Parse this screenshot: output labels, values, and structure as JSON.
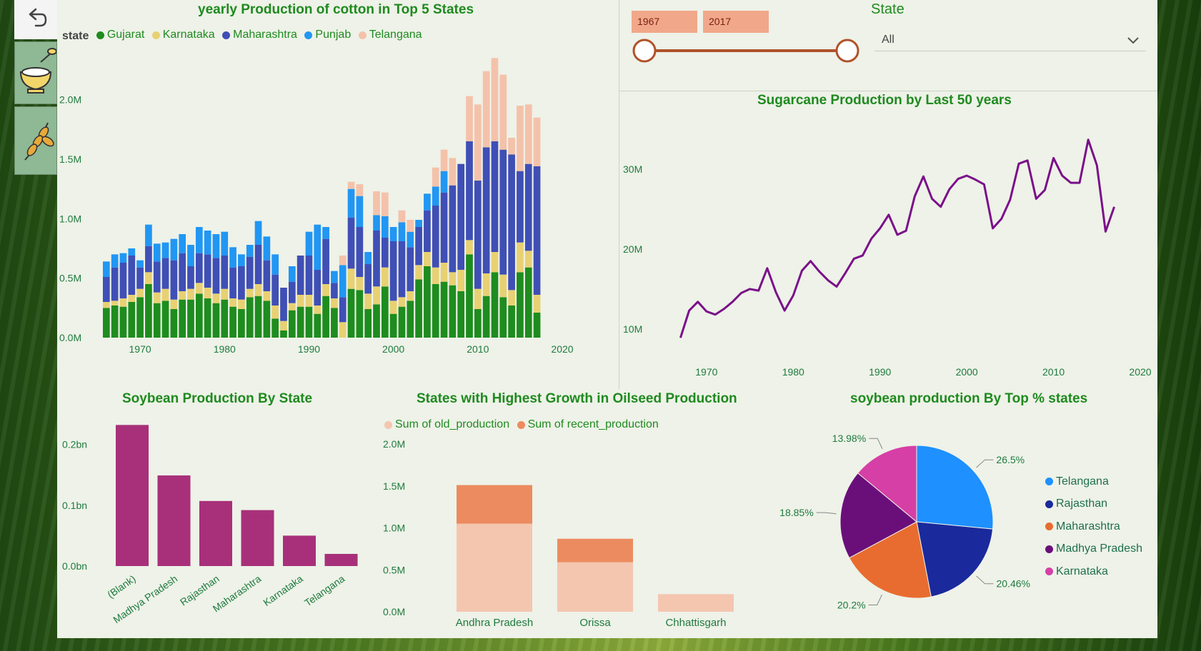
{
  "nav": {
    "back_icon": "undo-arrow-icon",
    "button1_icon": "rice-bowl-icon",
    "button2_icon": "wheat-crop-icon"
  },
  "filters": {
    "year_from": "1967",
    "year_to": "2017",
    "state_label": "State",
    "state_value": "All"
  },
  "colors": {
    "Gujarat": "#1e8c1e",
    "Karnataka": "#e8d173",
    "Maharashtra": "#3f4fb5",
    "Punjab": "#2196f3",
    "Telangana": "#f4c2aa",
    "line": "#7b0f8a",
    "soy_bar": "#a8307a",
    "old": "#f4c6b0",
    "recent": "#ec8b5f",
    "pie_Telangana": "#1e90ff",
    "pie_Rajasthan": "#1a2a9c",
    "pie_Maharashtra": "#e86c2f",
    "pie_Madhya Pradesh": "#6a0f7a",
    "pie_Karnataka": "#d63fa6"
  },
  "chart_data": [
    {
      "type": "bar",
      "title": "yearly Production of cotton in Top 5 States",
      "legend_title": "state",
      "stacked": true,
      "x": [
        1966,
        1967,
        1968,
        1969,
        1970,
        1971,
        1972,
        1973,
        1974,
        1975,
        1976,
        1977,
        1978,
        1979,
        1980,
        1981,
        1982,
        1983,
        1984,
        1985,
        1986,
        1987,
        1988,
        1989,
        1990,
        1991,
        1992,
        1993,
        1994,
        1995,
        1996,
        1997,
        1998,
        1999,
        2000,
        2001,
        2002,
        2003,
        2004,
        2005,
        2006,
        2007,
        2008,
        2009,
        2010,
        2011,
        2012,
        2013,
        2014,
        2015,
        2016,
        2017
      ],
      "xticks": [
        1970,
        1980,
        1990,
        2000,
        2010,
        2020
      ],
      "yticks": [
        "0.0M",
        "0.5M",
        "1.0M",
        "1.5M",
        "2.0M"
      ],
      "ylim": [
        0,
        2400000
      ],
      "series": [
        {
          "name": "Gujarat",
          "values": [
            250000,
            270000,
            260000,
            300000,
            340000,
            450000,
            290000,
            310000,
            240000,
            320000,
            320000,
            370000,
            330000,
            290000,
            320000,
            260000,
            240000,
            340000,
            350000,
            310000,
            160000,
            60000,
            230000,
            260000,
            260000,
            200000,
            350000,
            250000,
            0,
            410000,
            400000,
            240000,
            280000,
            430000,
            200000,
            260000,
            310000,
            490000,
            600000,
            450000,
            470000,
            440000,
            390000,
            700000,
            240000,
            350000,
            550000,
            340000,
            270000,
            550000,
            590000,
            210000
          ]
        },
        {
          "name": "Karnataka",
          "values": [
            50000,
            40000,
            70000,
            60000,
            70000,
            100000,
            90000,
            100000,
            80000,
            70000,
            90000,
            90000,
            90000,
            80000,
            90000,
            70000,
            80000,
            70000,
            100000,
            80000,
            110000,
            80000,
            60000,
            100000,
            100000,
            70000,
            100000,
            80000,
            130000,
            170000,
            110000,
            130000,
            150000,
            160000,
            110000,
            80000,
            80000,
            120000,
            120000,
            140000,
            160000,
            110000,
            180000,
            120000,
            170000,
            190000,
            170000,
            190000,
            130000,
            250000,
            140000,
            150000
          ]
        },
        {
          "name": "Maharashtra",
          "values": [
            210000,
            280000,
            300000,
            330000,
            180000,
            220000,
            260000,
            260000,
            330000,
            320000,
            190000,
            250000,
            280000,
            300000,
            280000,
            260000,
            280000,
            270000,
            330000,
            260000,
            260000,
            280000,
            180000,
            330000,
            330000,
            300000,
            380000,
            130000,
            210000,
            430000,
            420000,
            250000,
            470000,
            250000,
            500000,
            470000,
            370000,
            320000,
            350000,
            520000,
            590000,
            730000,
            890000,
            830000,
            910000,
            1060000,
            930000,
            1050000,
            1140000,
            600000,
            730000,
            1080000
          ]
        },
        {
          "name": "Punjab",
          "values": [
            130000,
            110000,
            80000,
            60000,
            60000,
            180000,
            150000,
            130000,
            180000,
            160000,
            180000,
            220000,
            200000,
            200000,
            200000,
            170000,
            100000,
            100000,
            200000,
            200000,
            170000,
            0,
            130000,
            0,
            200000,
            380000,
            100000,
            100000,
            270000,
            240000,
            260000,
            100000,
            130000,
            180000,
            120000,
            160000,
            130000,
            60000,
            140000,
            160000,
            180000,
            0,
            0,
            0,
            0,
            0,
            0,
            0,
            0,
            0,
            0,
            0
          ]
        },
        {
          "name": "Telangana",
          "values": [
            0,
            0,
            0,
            0,
            0,
            0,
            0,
            0,
            0,
            0,
            0,
            0,
            0,
            0,
            0,
            0,
            0,
            0,
            0,
            0,
            0,
            0,
            0,
            0,
            0,
            0,
            0,
            0,
            80000,
            60000,
            100000,
            0,
            200000,
            200000,
            0,
            100000,
            100000,
            0,
            0,
            160000,
            180000,
            230000,
            0,
            380000,
            640000,
            640000,
            700000,
            630000,
            140000,
            550000,
            500000,
            410000
          ]
        }
      ]
    },
    {
      "type": "line",
      "title": "Sugarcane Production by Last 50 years",
      "x": [
        1967,
        1968,
        1969,
        1970,
        1971,
        1972,
        1973,
        1974,
        1975,
        1976,
        1977,
        1978,
        1979,
        1980,
        1981,
        1982,
        1983,
        1984,
        1985,
        1986,
        1987,
        1988,
        1989,
        1990,
        1991,
        1992,
        1993,
        1994,
        1995,
        1996,
        1997,
        1998,
        1999,
        2000,
        2001,
        2002,
        2003,
        2004,
        2005,
        2006,
        2007,
        2008,
        2009,
        2010,
        2011,
        2012,
        2013,
        2014,
        2015,
        2016,
        2017
      ],
      "values": [
        8900000,
        12300000,
        13400000,
        12200000,
        11800000,
        12500000,
        13400000,
        14500000,
        15000000,
        14800000,
        17600000,
        14600000,
        12300000,
        14200000,
        17300000,
        18500000,
        17200000,
        16100000,
        15300000,
        17000000,
        18800000,
        19200000,
        21300000,
        22600000,
        24300000,
        21800000,
        22300000,
        26600000,
        29100000,
        26300000,
        25300000,
        27500000,
        28800000,
        29200000,
        28700000,
        28100000,
        22600000,
        23800000,
        26200000,
        30700000,
        31100000,
        26300000,
        27400000,
        31400000,
        29200000,
        28300000,
        28300000,
        33700000,
        30500000,
        22200000,
        25300000
      ],
      "xticks": [
        1970,
        1980,
        1990,
        2000,
        2010,
        2020
      ],
      "yticks": [
        "10M",
        "20M",
        "30M"
      ],
      "ylim": [
        6500000,
        36000000
      ]
    },
    {
      "type": "bar",
      "title": "Soybean Production By State",
      "categories": [
        "(Blank)",
        "Madhya Pradesh",
        "Rajasthan",
        "Maharashtra",
        "Karnataka",
        "Telangana"
      ],
      "values": [
        232000000,
        149000000,
        107000000,
        92000000,
        50000000,
        20000000
      ],
      "yticks": [
        "0.0bn",
        "0.1bn",
        "0.2bn"
      ],
      "ylim": [
        0,
        250000000
      ]
    },
    {
      "type": "bar",
      "title": "States with Highest Growth in Oilseed Production",
      "stacked": true,
      "categories": [
        "Andhra Pradesh",
        "Orissa",
        "Chhattisgarh"
      ],
      "series": [
        {
          "name": "Sum of old_production",
          "values": [
            1050000,
            590000,
            210000
          ]
        },
        {
          "name": "Sum of recent_production",
          "values": [
            460000,
            280000,
            0
          ]
        }
      ],
      "yticks": [
        "0.0M",
        "0.5M",
        "1.0M",
        "1.5M",
        "2.0M"
      ],
      "ylim": [
        0,
        2000000
      ]
    },
    {
      "type": "pie",
      "title": "soybean production By Top % states",
      "labels": [
        "Telangana",
        "Rajasthan",
        "Maharashtra",
        "Madhya Pradesh",
        "Karnataka"
      ],
      "values": [
        26.5,
        20.46,
        20.2,
        18.85,
        13.98
      ],
      "value_labels": [
        "26.5%",
        "20.46%",
        "20.2%",
        "18.85%",
        "13.98%"
      ]
    }
  ]
}
